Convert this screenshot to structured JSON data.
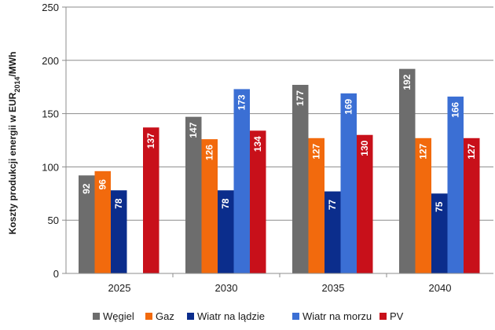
{
  "chart_data": {
    "type": "bar",
    "title": "",
    "xlabel": "",
    "ylabel": "Koszty produkcji energii w EUR2014/MWh",
    "ylabel_parts": {
      "pre": "Koszty produkcji energii w EUR",
      "sub": "2014",
      "post": "/MWh"
    },
    "ylim": [
      0,
      250
    ],
    "yticks": [
      0,
      50,
      100,
      150,
      200,
      250
    ],
    "grid": true,
    "legend_position": "bottom",
    "categories": [
      "2025",
      "2030",
      "2035",
      "2040"
    ],
    "series": [
      {
        "name": "Węgiel",
        "color": "#6d6d6d",
        "values": [
          92,
          147,
          177,
          192
        ]
      },
      {
        "name": "Gaz",
        "color": "#f26a0d",
        "values": [
          96,
          126,
          127,
          127
        ]
      },
      {
        "name": "Wiatr na lądzie",
        "color": "#0b2d8c",
        "values": [
          78,
          78,
          77,
          75
        ]
      },
      {
        "name": "Wiatr na morzu",
        "color": "#3b6fd4",
        "values": [
          null,
          173,
          169,
          166
        ]
      },
      {
        "name": "PV",
        "color": "#c8101a",
        "values": [
          137,
          134,
          130,
          127
        ]
      }
    ]
  }
}
